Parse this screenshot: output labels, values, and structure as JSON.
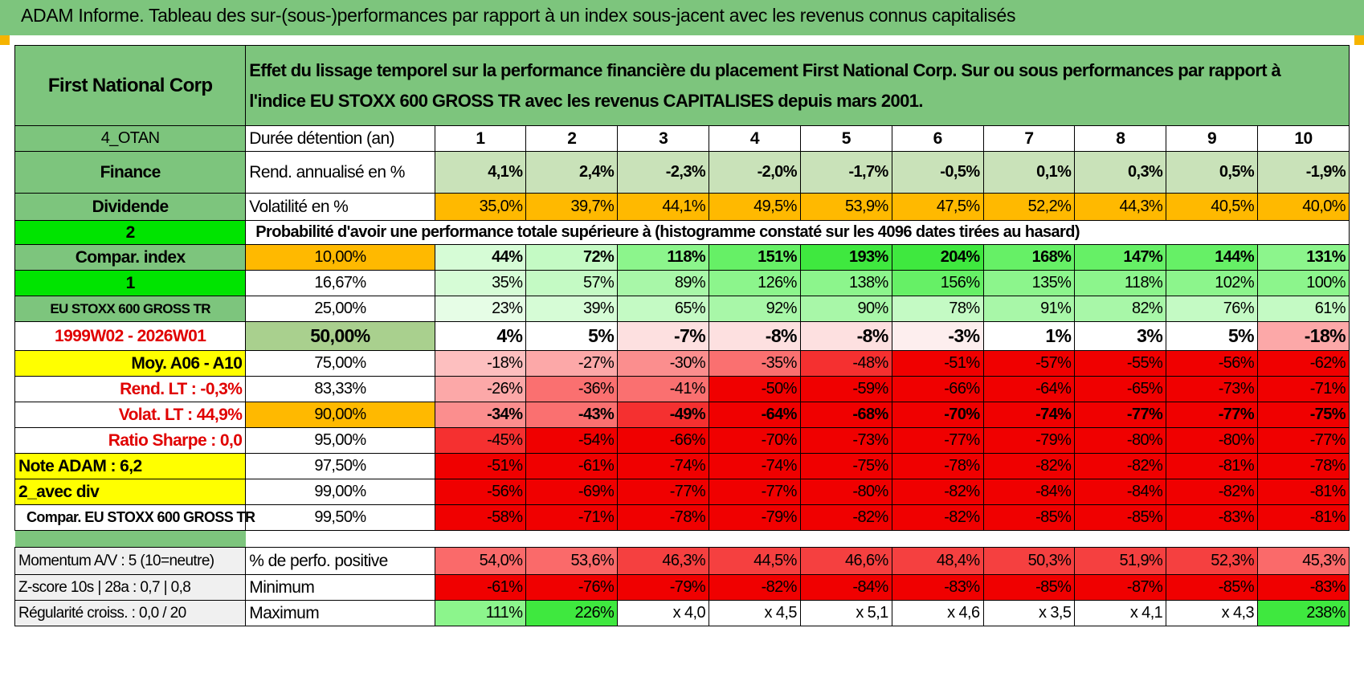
{
  "header": {
    "title": "ADAM Informe. Tableau des sur-(sous-)performances par rapport à un index sous-jacent avec les revenus connus capitalisés"
  },
  "colors": {
    "green_header": "#7dc57d",
    "bright_green": "#00e400",
    "yellow": "#ffff00",
    "orange": "#ffb900",
    "red_text": "#e00000"
  },
  "intro": {
    "company": "First National Corp",
    "description_line1": "Effet du lissage temporel sur la performance financière du placement First National Corp. Sur ou sous performances par rapport à",
    "description_line2": "l'indice EU STOXX 600 GROSS TR avec les revenus CAPITALISES depuis mars 2001."
  },
  "side": {
    "code": "4_OTAN",
    "sector": "Finance",
    "type": "Dividende",
    "num2": "2",
    "compar": "Compar. index",
    "num1": "1",
    "index_name": "EU STOXX 600 GROSS TR",
    "period": "1999W02 - 2026W01",
    "moy": "Moy. A06 - A10",
    "rend_lt": "Rend. LT :    -0,3%",
    "volat_lt": "Volat. LT :    44,9%",
    "sharpe": "Ratio Sharpe :     0,0",
    "note": "Note ADAM : 6,2",
    "avec_div": "2_avec div",
    "compar_index": "Compar. EU STOXX 600 GROSS TR"
  },
  "holding": {
    "label": "Durée détention (an)",
    "years": [
      "1",
      "2",
      "3",
      "4",
      "5",
      "6",
      "7",
      "8",
      "9",
      "10"
    ]
  },
  "rend": {
    "label": "Rend. annualisé en %",
    "values": [
      "4,1%",
      "2,4%",
      "-2,3%",
      "-2,0%",
      "-1,7%",
      "-0,5%",
      "0,1%",
      "0,3%",
      "0,5%",
      "-1,9%"
    ]
  },
  "vol": {
    "label": "Volatilité en %",
    "values": [
      "35,0%",
      "39,7%",
      "44,1%",
      "49,5%",
      "53,9%",
      "47,5%",
      "52,2%",
      "44,3%",
      "40,5%",
      "40,0%"
    ]
  },
  "prob_title": "Probabilité d'avoir une performance totale supérieure à (histogramme constaté sur les 4096 dates tirées au hasard)",
  "prob_rows": [
    {
      "pct": "10,00%",
      "values": [
        "44%",
        "72%",
        "118%",
        "151%",
        "193%",
        "204%",
        "168%",
        "147%",
        "144%",
        "131%"
      ]
    },
    {
      "pct": "16,67%",
      "values": [
        "35%",
        "57%",
        "89%",
        "126%",
        "138%",
        "156%",
        "135%",
        "118%",
        "102%",
        "100%"
      ]
    },
    {
      "pct": "25,00%",
      "values": [
        "23%",
        "39%",
        "65%",
        "92%",
        "90%",
        "78%",
        "91%",
        "82%",
        "76%",
        "61%"
      ]
    },
    {
      "pct": "50,00%",
      "values": [
        "4%",
        "5%",
        "-7%",
        "-8%",
        "-8%",
        "-3%",
        "1%",
        "3%",
        "5%",
        "-18%"
      ]
    },
    {
      "pct": "75,00%",
      "values": [
        "-18%",
        "-27%",
        "-30%",
        "-35%",
        "-48%",
        "-51%",
        "-57%",
        "-55%",
        "-56%",
        "-62%"
      ]
    },
    {
      "pct": "83,33%",
      "values": [
        "-26%",
        "-36%",
        "-41%",
        "-50%",
        "-59%",
        "-66%",
        "-64%",
        "-65%",
        "-73%",
        "-71%"
      ]
    },
    {
      "pct": "90,00%",
      "values": [
        "-34%",
        "-43%",
        "-49%",
        "-64%",
        "-68%",
        "-70%",
        "-74%",
        "-77%",
        "-77%",
        "-75%"
      ]
    },
    {
      "pct": "95,00%",
      "values": [
        "-45%",
        "-54%",
        "-66%",
        "-70%",
        "-73%",
        "-77%",
        "-79%",
        "-80%",
        "-80%",
        "-77%"
      ]
    },
    {
      "pct": "97,50%",
      "values": [
        "-51%",
        "-61%",
        "-74%",
        "-74%",
        "-75%",
        "-78%",
        "-82%",
        "-82%",
        "-81%",
        "-78%"
      ]
    },
    {
      "pct": "99,00%",
      "values": [
        "-56%",
        "-69%",
        "-77%",
        "-77%",
        "-80%",
        "-82%",
        "-84%",
        "-84%",
        "-82%",
        "-81%"
      ]
    },
    {
      "pct": "99,50%",
      "values": [
        "-58%",
        "-71%",
        "-78%",
        "-79%",
        "-82%",
        "-82%",
        "-85%",
        "-85%",
        "-83%",
        "-81%"
      ]
    }
  ],
  "bottom": {
    "momentum": "Momentum A/V : 5 (10=neutre)",
    "zscore": "Z-score 10s | 28a : 0,7 | 0,8",
    "regularite": "Régularité croiss. : 0,0 / 20",
    "positive_label": "% de perfo. positive",
    "positive_values": [
      "54,0%",
      "53,6%",
      "46,3%",
      "44,5%",
      "46,6%",
      "48,4%",
      "50,3%",
      "51,9%",
      "52,3%",
      "45,3%"
    ],
    "min_label": "Minimum",
    "min_values": [
      "-61%",
      "-76%",
      "-79%",
      "-82%",
      "-84%",
      "-83%",
      "-85%",
      "-87%",
      "-85%",
      "-83%"
    ],
    "max_label": "Maximum",
    "max_values": [
      "111%",
      "226%",
      "x 4,0",
      "x 4,5",
      "x 5,1",
      "x 4,6",
      "x 3,5",
      "x 4,1",
      "x 4,3",
      "238%"
    ]
  }
}
